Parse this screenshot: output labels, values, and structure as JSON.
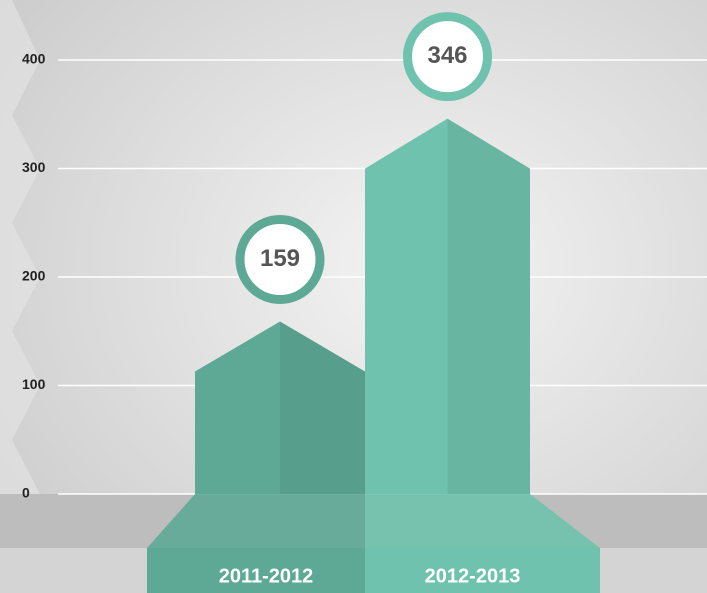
{
  "chart_data": {
    "type": "bar",
    "categories": [
      "2011-2012",
      "2012-2013"
    ],
    "values": [
      159,
      346
    ],
    "colors": [
      "#5ea896",
      "#6fc2ad"
    ],
    "ylim": [
      0,
      400
    ],
    "yticks": [
      0,
      100,
      200,
      300,
      400
    ],
    "grid": true
  }
}
